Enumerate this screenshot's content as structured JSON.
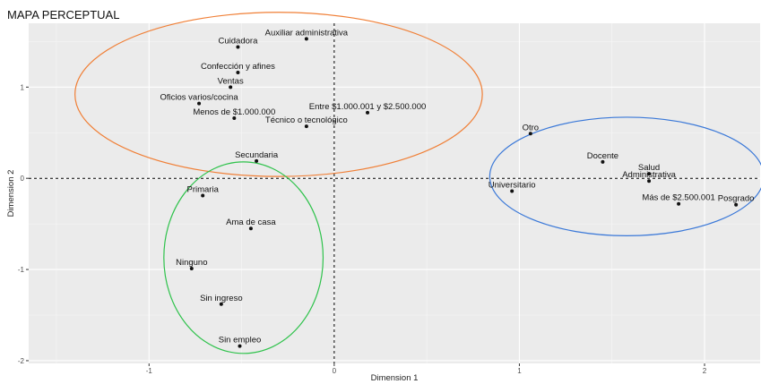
{
  "chart_data": {
    "type": "scatter",
    "title": "MAPA PERCEPTUAL",
    "xlabel": "Dimension 1",
    "ylabel": "Dimension 2",
    "xlim": [
      -1.65,
      2.3
    ],
    "ylim": [
      -2.03,
      1.7
    ],
    "xticks": [
      -1,
      0,
      1,
      2
    ],
    "yticks": [
      -2,
      -1,
      0,
      1
    ],
    "grid": true,
    "points": [
      {
        "label": "Auxiliar administrativa",
        "x": -0.15,
        "y": 1.53
      },
      {
        "label": "Cuidadora",
        "x": -0.52,
        "y": 1.44
      },
      {
        "label": "Confección y afines",
        "x": -0.52,
        "y": 1.16
      },
      {
        "label": "Ventas",
        "x": -0.56,
        "y": 1.0
      },
      {
        "label": "Oficios varios/cocina",
        "x": -0.73,
        "y": 0.82
      },
      {
        "label": "Menos de $1.000.000",
        "x": -0.54,
        "y": 0.66
      },
      {
        "label": "Técnico o tecnológico",
        "x": -0.15,
        "y": 0.57
      },
      {
        "label": "Entre $1.000.001 y $2.500.000",
        "x": 0.18,
        "y": 0.72
      },
      {
        "label": "Secundaria",
        "x": -0.42,
        "y": 0.19
      },
      {
        "label": "Primaria",
        "x": -0.71,
        "y": -0.19
      },
      {
        "label": "Ama de casa",
        "x": -0.45,
        "y": -0.55
      },
      {
        "label": "Ninguno",
        "x": -0.77,
        "y": -0.99
      },
      {
        "label": "Sin ingreso",
        "x": -0.61,
        "y": -1.38
      },
      {
        "label": "Sin empleo",
        "x": -0.51,
        "y": -1.84
      },
      {
        "label": "Otro",
        "x": 1.06,
        "y": 0.49
      },
      {
        "label": "Docente",
        "x": 1.45,
        "y": 0.18
      },
      {
        "label": "Salud",
        "x": 1.7,
        "y": 0.05
      },
      {
        "label": "Administrativa",
        "x": 1.7,
        "y": -0.03
      },
      {
        "label": "Universitario",
        "x": 0.96,
        "y": -0.14
      },
      {
        "label": "Más de $2.500.001",
        "x": 1.86,
        "y": -0.28
      },
      {
        "label": "Posgrado",
        "x": 2.17,
        "y": -0.29
      }
    ],
    "ellipses": [
      {
        "name": "orange",
        "color": "#f07f36",
        "cx": -0.3,
        "cy": 0.92,
        "rx": 1.1,
        "ry": 0.9
      },
      {
        "name": "green",
        "color": "#2ec24b",
        "cx": -0.49,
        "cy": -0.87,
        "rx": 0.43,
        "ry": 1.05
      },
      {
        "name": "blue",
        "color": "#3a78d8",
        "cx": 1.58,
        "cy": 0.02,
        "rx": 0.74,
        "ry": 0.65
      }
    ],
    "reference_lines": {
      "x": 0,
      "y": 0,
      "style": "dashed"
    }
  }
}
